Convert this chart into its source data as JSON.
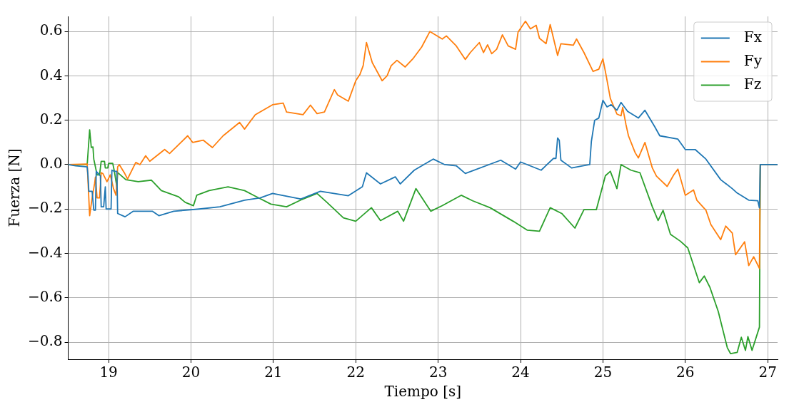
{
  "chart_data": {
    "type": "line",
    "xlabel": "Tiempo [s]",
    "ylabel": "Fuerza [N]",
    "xlim": [
      18.51,
      27.12
    ],
    "ylim": [
      -0.877,
      0.668
    ],
    "xticks": [
      19,
      20,
      21,
      22,
      23,
      24,
      25,
      26,
      27
    ],
    "yticks": [
      {
        "value": -0.8,
        "label": "−0.8"
      },
      {
        "value": -0.6,
        "label": "−0.6"
      },
      {
        "value": -0.4,
        "label": "−0.4"
      },
      {
        "value": -0.2,
        "label": "−0.2"
      },
      {
        "value": 0,
        "label": "0.0"
      },
      0.2,
      0.4,
      0.6
    ],
    "grid": true,
    "legend": "top right",
    "line_style": "solid",
    "marker": "none",
    "series": [
      {
        "name": "Fx",
        "color": "#1f77b4",
        "x": [
          18.51,
          18.6,
          18.74,
          18.75,
          18.76,
          18.8,
          18.82,
          18.84,
          18.85,
          18.9,
          18.91,
          18.94,
          18.96,
          18.97,
          19.03,
          19.04,
          19.07,
          19.1,
          19.11,
          19.2,
          19.3,
          19.53,
          19.61,
          19.79,
          20.1,
          20.35,
          20.65,
          20.84,
          20.99,
          21.33,
          21.57,
          21.91,
          22.08,
          22.13,
          22.3,
          22.48,
          22.54,
          22.71,
          22.94,
          23.08,
          23.22,
          23.33,
          23.76,
          23.94,
          24.0,
          24.25,
          24.4,
          24.43,
          24.45,
          24.47,
          24.49,
          24.62,
          24.79,
          24.84,
          24.86,
          24.9,
          24.95,
          25.0,
          25.05,
          25.1,
          25.17,
          25.22,
          25.3,
          25.43,
          25.51,
          25.63,
          25.69,
          25.91,
          26.0,
          26.12,
          26.25,
          26.43,
          26.57,
          26.63,
          26.77,
          26.88,
          26.9,
          26.91,
          27.12
        ],
        "values": [
          0,
          -0.005,
          -0.01,
          -0.05,
          -0.12,
          -0.12,
          -0.205,
          -0.205,
          -0.03,
          -0.05,
          -0.19,
          -0.19,
          -0.1,
          -0.2,
          -0.2,
          -0.025,
          -0.03,
          -0.03,
          -0.22,
          -0.235,
          -0.21,
          -0.21,
          -0.23,
          -0.21,
          -0.2,
          -0.19,
          -0.16,
          -0.15,
          -0.13,
          -0.155,
          -0.12,
          -0.14,
          -0.1,
          -0.037,
          -0.087,
          -0.055,
          -0.087,
          -0.025,
          0.025,
          0,
          -0.005,
          -0.04,
          0.02,
          -0.02,
          0.012,
          -0.025,
          0.028,
          0.028,
          0.12,
          0.11,
          0.02,
          -0.015,
          -0.003,
          0,
          0.105,
          0.2,
          0.21,
          0.29,
          0.26,
          0.27,
          0.245,
          0.28,
          0.24,
          0.21,
          0.245,
          0.17,
          0.13,
          0.115,
          0.068,
          0.068,
          0.025,
          -0.068,
          -0.108,
          -0.128,
          -0.16,
          -0.163,
          -0.195,
          0,
          0
        ]
      },
      {
        "name": "Fy",
        "color": "#ff7f0e",
        "x": [
          18.51,
          18.74,
          18.77,
          18.8,
          18.83,
          18.84,
          18.86,
          18.89,
          18.91,
          18.93,
          18.98,
          19.02,
          19.06,
          19.09,
          19.11,
          19.13,
          19.19,
          19.23,
          19.33,
          19.38,
          19.45,
          19.5,
          19.68,
          19.74,
          19.96,
          20.02,
          20.15,
          20.26,
          20.39,
          20.59,
          20.65,
          20.78,
          20.99,
          21.12,
          21.16,
          21.36,
          21.45,
          21.53,
          21.62,
          21.74,
          21.78,
          21.91,
          22.0,
          22.05,
          22.09,
          22.13,
          22.2,
          22.32,
          22.38,
          22.43,
          22.5,
          22.6,
          22.7,
          22.8,
          22.9,
          23.05,
          23.1,
          23.22,
          23.33,
          23.39,
          23.5,
          23.55,
          23.6,
          23.65,
          23.71,
          23.78,
          23.85,
          23.94,
          23.97,
          24.06,
          24.12,
          24.19,
          24.23,
          24.31,
          24.36,
          24.45,
          24.49,
          24.64,
          24.68,
          24.77,
          24.88,
          24.95,
          25.0,
          25.04,
          25.09,
          25.17,
          25.22,
          25.24,
          25.28,
          25.31,
          25.39,
          25.43,
          25.51,
          25.6,
          25.65,
          25.78,
          25.86,
          25.91,
          26.0,
          26.1,
          26.14,
          26.25,
          26.31,
          26.43,
          26.49,
          26.57,
          26.61,
          26.72,
          26.77,
          26.83,
          26.9,
          26.91,
          27.12
        ],
        "values": [
          0,
          0.003,
          -0.23,
          -0.15,
          -0.085,
          -0.056,
          -0.15,
          -0.15,
          -0.036,
          -0.04,
          -0.077,
          -0.046,
          -0.108,
          -0.138,
          -0.01,
          0,
          -0.036,
          -0.065,
          0.01,
          0,
          0.04,
          0.015,
          0.068,
          0.05,
          0.13,
          0.1,
          0.11,
          0.077,
          0.13,
          0.19,
          0.16,
          0.225,
          0.27,
          0.277,
          0.237,
          0.225,
          0.268,
          0.23,
          0.237,
          0.338,
          0.314,
          0.286,
          0.378,
          0.406,
          0.446,
          0.55,
          0.46,
          0.378,
          0.4,
          0.446,
          0.47,
          0.44,
          0.48,
          0.53,
          0.6,
          0.566,
          0.58,
          0.535,
          0.474,
          0.505,
          0.55,
          0.505,
          0.54,
          0.5,
          0.52,
          0.585,
          0.535,
          0.52,
          0.597,
          0.646,
          0.612,
          0.628,
          0.569,
          0.545,
          0.631,
          0.492,
          0.545,
          0.538,
          0.566,
          0.505,
          0.42,
          0.43,
          0.477,
          0.4,
          0.298,
          0.228,
          0.22,
          0.258,
          0.18,
          0.13,
          0.055,
          0.03,
          0.1,
          -0.015,
          -0.052,
          -0.098,
          -0.046,
          -0.02,
          -0.138,
          -0.114,
          -0.16,
          -0.205,
          -0.27,
          -0.338,
          -0.277,
          -0.308,
          -0.406,
          -0.348,
          -0.455,
          -0.415,
          -0.468,
          0,
          0
        ]
      },
      {
        "name": "Fz",
        "color": "#2ca02c",
        "x": [
          18.51,
          18.74,
          18.77,
          18.79,
          18.81,
          18.82,
          18.86,
          18.89,
          18.91,
          18.95,
          18.96,
          18.99,
          19.0,
          19.05,
          19.07,
          19.1,
          19.11,
          19.21,
          19.36,
          19.52,
          19.64,
          19.85,
          19.93,
          20.03,
          20.07,
          20.22,
          20.45,
          20.65,
          20.76,
          20.97,
          21.16,
          21.33,
          21.53,
          21.65,
          21.85,
          22.0,
          22.19,
          22.3,
          22.51,
          22.58,
          22.73,
          22.91,
          23.05,
          23.28,
          23.42,
          23.63,
          23.91,
          24.08,
          24.23,
          24.36,
          24.5,
          24.66,
          24.77,
          24.92,
          25.03,
          25.09,
          25.17,
          25.22,
          25.34,
          25.45,
          25.6,
          25.67,
          25.73,
          25.82,
          25.94,
          26.03,
          26.17,
          26.23,
          26.3,
          26.4,
          26.51,
          26.55,
          26.63,
          26.68,
          26.73,
          26.76,
          26.81,
          26.9,
          26.91,
          27.12
        ],
        "values": [
          0,
          0,
          0.157,
          0.077,
          0.08,
          0.025,
          -0.046,
          -0.046,
          0.015,
          0.015,
          -0.015,
          -0.015,
          0.006,
          0.006,
          -0.03,
          -0.1,
          -0.036,
          -0.068,
          -0.077,
          -0.07,
          -0.117,
          -0.145,
          -0.17,
          -0.185,
          -0.138,
          -0.117,
          -0.1,
          -0.117,
          -0.138,
          -0.178,
          -0.19,
          -0.16,
          -0.13,
          -0.17,
          -0.24,
          -0.255,
          -0.194,
          -0.252,
          -0.21,
          -0.255,
          -0.108,
          -0.21,
          -0.185,
          -0.138,
          -0.163,
          -0.194,
          -0.255,
          -0.295,
          -0.3,
          -0.194,
          -0.22,
          -0.286,
          -0.203,
          -0.203,
          -0.05,
          -0.03,
          -0.108,
          0,
          -0.025,
          -0.037,
          -0.19,
          -0.252,
          -0.206,
          -0.314,
          -0.345,
          -0.375,
          -0.532,
          -0.502,
          -0.554,
          -0.662,
          -0.825,
          -0.852,
          -0.846,
          -0.778,
          -0.837,
          -0.775,
          -0.837,
          -0.732,
          0,
          0
        ]
      }
    ]
  }
}
